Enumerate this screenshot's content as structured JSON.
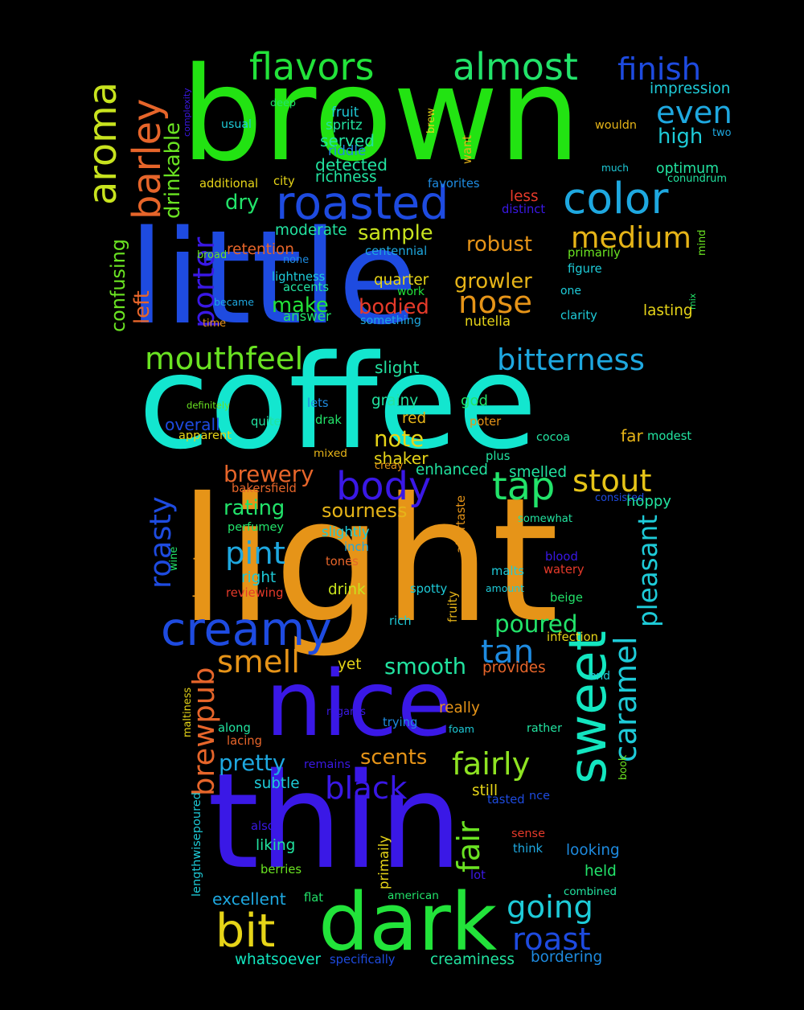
{
  "words": [
    {
      "text": "brown",
      "color": "#22e312"
    },
    {
      "text": "little",
      "color": "#1e4be0"
    },
    {
      "text": "coffee",
      "color": "#13e6cf"
    },
    {
      "text": "light",
      "color": "#e69418"
    },
    {
      "text": "nice",
      "color": "#3a18e6"
    },
    {
      "text": "thin",
      "color": "#3a18e6"
    },
    {
      "text": "dark",
      "color": "#22e33a"
    },
    {
      "text": "sweet",
      "color": "#13e6c0"
    },
    {
      "text": "creamy",
      "color": "#1e4be0"
    },
    {
      "text": "roasted",
      "color": "#1e4be0"
    },
    {
      "text": "color",
      "color": "#1ea8e0"
    },
    {
      "text": "flavors",
      "color": "#22e33a"
    },
    {
      "text": "almost",
      "color": "#22e36a"
    },
    {
      "text": "finish",
      "color": "#1e4be0"
    },
    {
      "text": "aroma",
      "color": "#c8e31e"
    },
    {
      "text": "barley",
      "color": "#e6652a"
    },
    {
      "text": "even",
      "color": "#1ea8e0"
    },
    {
      "text": "high",
      "color": "#1ecbd8"
    },
    {
      "text": "medium",
      "color": "#e6b418"
    },
    {
      "text": "nose",
      "color": "#e69418"
    },
    {
      "text": "mouthfeel",
      "color": "#6ae322"
    },
    {
      "text": "bitterness",
      "color": "#1ea8e0"
    },
    {
      "text": "body",
      "color": "#3a18e6"
    },
    {
      "text": "tap",
      "color": "#22e36a"
    },
    {
      "text": "stout",
      "color": "#e6c418"
    },
    {
      "text": "pint",
      "color": "#1ea8e0"
    },
    {
      "text": "smell",
      "color": "#e69418"
    },
    {
      "text": "tan",
      "color": "#1e8be0"
    },
    {
      "text": "caramel",
      "color": "#1ecbd8"
    },
    {
      "text": "fairly",
      "color": "#8ee322"
    },
    {
      "text": "fair",
      "color": "#6ae322"
    },
    {
      "text": "black",
      "color": "#3a18e6"
    },
    {
      "text": "bit",
      "color": "#e6d418"
    },
    {
      "text": "going",
      "color": "#1ecbd8"
    },
    {
      "text": "roast",
      "color": "#1e4be0"
    },
    {
      "text": "porter",
      "color": "#3a18e6"
    },
    {
      "text": "roasty",
      "color": "#1e4be0"
    },
    {
      "text": "brewpub",
      "color": "#e6652a"
    },
    {
      "text": "pleasant",
      "color": "#1ecbd8"
    },
    {
      "text": "drinkable",
      "color": "#6ae322"
    },
    {
      "text": "confusing",
      "color": "#6ae322"
    },
    {
      "text": "left",
      "color": "#e6652a"
    },
    {
      "text": "dry",
      "color": "#22e36a"
    },
    {
      "text": "sample",
      "color": "#c8e31e"
    },
    {
      "text": "robust",
      "color": "#e69418"
    },
    {
      "text": "growler",
      "color": "#e6b418"
    },
    {
      "text": "make",
      "color": "#22e33a"
    },
    {
      "text": "bodied",
      "color": "#e63a2a"
    },
    {
      "text": "brewery",
      "color": "#e6652a"
    },
    {
      "text": "rating",
      "color": "#22e36a"
    },
    {
      "text": "sourness",
      "color": "#e6b418"
    },
    {
      "text": "note",
      "color": "#e6d418"
    },
    {
      "text": "poured",
      "color": "#22e36a"
    },
    {
      "text": "smooth",
      "color": "#22e3a0"
    },
    {
      "text": "pretty",
      "color": "#1ea8e0"
    },
    {
      "text": "scents",
      "color": "#e69418"
    },
    {
      "text": "excellent",
      "color": "#1ea8e0"
    },
    {
      "text": "whatsoever",
      "color": "#13e6c0"
    },
    {
      "text": "creaminess",
      "color": "#22e3a0"
    },
    {
      "text": "bordering",
      "color": "#1e8be0"
    },
    {
      "text": "impression",
      "color": "#1ecbd8"
    },
    {
      "text": "moderate",
      "color": "#22e3a0"
    },
    {
      "text": "retention",
      "color": "#e6652a"
    },
    {
      "text": "served",
      "color": "#22e3a0"
    },
    {
      "text": "detected",
      "color": "#22e3a0"
    },
    {
      "text": "richness",
      "color": "#22e3a0"
    },
    {
      "text": "spritz",
      "color": "#22e3a0"
    },
    {
      "text": "fruit",
      "color": "#1ecbd8"
    },
    {
      "text": "riddle",
      "color": "#1e8be0"
    },
    {
      "text": "deep",
      "color": "#22e36a"
    },
    {
      "text": "usual",
      "color": "#1ecbd8"
    },
    {
      "text": "additional",
      "color": "#e6d418"
    },
    {
      "text": "city",
      "color": "#e6d418"
    },
    {
      "text": "favorites",
      "color": "#1e8be0"
    },
    {
      "text": "less",
      "color": "#e63a2a"
    },
    {
      "text": "distinct",
      "color": "#3a18e6"
    },
    {
      "text": "wouldn",
      "color": "#e6b418"
    },
    {
      "text": "two",
      "color": "#1ea8e0"
    },
    {
      "text": "much",
      "color": "#1ecbd8"
    },
    {
      "text": "optimum",
      "color": "#22e3a0"
    },
    {
      "text": "conundrum",
      "color": "#22e3a0"
    },
    {
      "text": "brew",
      "color": "#e6d418"
    },
    {
      "text": "want",
      "color": "#e6b418"
    },
    {
      "text": "complexity",
      "color": "#3a18e6"
    },
    {
      "text": "broad",
      "color": "#6ae322"
    },
    {
      "text": "none",
      "color": "#1e8be0"
    },
    {
      "text": "centennial",
      "color": "#1ea8e0"
    },
    {
      "text": "primarily",
      "color": "#6ae322"
    },
    {
      "text": "mind",
      "color": "#6ae322"
    },
    {
      "text": "figure",
      "color": "#1ecbd8"
    },
    {
      "text": "lightness",
      "color": "#1ecbd8"
    },
    {
      "text": "accents",
      "color": "#22e3a0"
    },
    {
      "text": "quarter",
      "color": "#e6d418"
    },
    {
      "text": "work",
      "color": "#22e33a"
    },
    {
      "text": "one",
      "color": "#1ecbd8"
    },
    {
      "text": "mix",
      "color": "#22e36a"
    },
    {
      "text": "became",
      "color": "#1ea8e0"
    },
    {
      "text": "time",
      "color": "#e69418"
    },
    {
      "text": "answer",
      "color": "#22e36a"
    },
    {
      "text": "something",
      "color": "#1ea8e0"
    },
    {
      "text": "nutella",
      "color": "#e6d418"
    },
    {
      "text": "clarity",
      "color": "#1ecbd8"
    },
    {
      "text": "lasting",
      "color": "#e6d418"
    },
    {
      "text": "slight",
      "color": "#22e3a0"
    },
    {
      "text": "definitely",
      "color": "#6ae322"
    },
    {
      "text": "lets",
      "color": "#1e8be0"
    },
    {
      "text": "grainy",
      "color": "#22e3a0"
    },
    {
      "text": "god",
      "color": "#22e36a"
    },
    {
      "text": "overall",
      "color": "#1e4be0"
    },
    {
      "text": "quite",
      "color": "#22e3a0"
    },
    {
      "text": "drak",
      "color": "#22e36a"
    },
    {
      "text": "red",
      "color": "#e6b418"
    },
    {
      "text": "poter",
      "color": "#e69418"
    },
    {
      "text": "apparent",
      "color": "#e6d418"
    },
    {
      "text": "cocoa",
      "color": "#22e3a0"
    },
    {
      "text": "far",
      "color": "#e6b418"
    },
    {
      "text": "modest",
      "color": "#22e3a0"
    },
    {
      "text": "mixed",
      "color": "#e6b418"
    },
    {
      "text": "shaker",
      "color": "#e6d418"
    },
    {
      "text": "plus",
      "color": "#22e3a0"
    },
    {
      "text": "creay",
      "color": "#e69418"
    },
    {
      "text": "enhanced",
      "color": "#22e3a0"
    },
    {
      "text": "smelled",
      "color": "#22e3a0"
    },
    {
      "text": "bakersfield",
      "color": "#e6652a"
    },
    {
      "text": "consisted",
      "color": "#1e4be0"
    },
    {
      "text": "hoppy",
      "color": "#22e3a0"
    },
    {
      "text": "aftertaste",
      "color": "#e69418"
    },
    {
      "text": "perfumey",
      "color": "#22e36a"
    },
    {
      "text": "slightly",
      "color": "#1ecbd8"
    },
    {
      "text": "somewhat",
      "color": "#22e3a0"
    },
    {
      "text": "inch",
      "color": "#1ea8e0"
    },
    {
      "text": "wine",
      "color": "#22e36a"
    },
    {
      "text": "tones",
      "color": "#e6652a"
    },
    {
      "text": "blood",
      "color": "#3a18e6"
    },
    {
      "text": "watery",
      "color": "#e63a2a"
    },
    {
      "text": "right",
      "color": "#1ecbd8"
    },
    {
      "text": "malts",
      "color": "#1ecbd8"
    },
    {
      "text": "burnt",
      "color": "#e69418"
    },
    {
      "text": "reviewing",
      "color": "#e63a2a"
    },
    {
      "text": "drink",
      "color": "#c8e31e"
    },
    {
      "text": "spotty",
      "color": "#1ecbd8"
    },
    {
      "text": "amount",
      "color": "#1ecbd8"
    },
    {
      "text": "fruity",
      "color": "#e6b418"
    },
    {
      "text": "beige",
      "color": "#22e36a"
    },
    {
      "text": "rich",
      "color": "#1ecbd8"
    },
    {
      "text": "infection",
      "color": "#e6d418"
    },
    {
      "text": "yet",
      "color": "#e6d418"
    },
    {
      "text": "provides",
      "color": "#e6652a"
    },
    {
      "text": "end",
      "color": "#1ecbd8"
    },
    {
      "text": "maltiness",
      "color": "#e6d418"
    },
    {
      "text": "really",
      "color": "#e69418"
    },
    {
      "text": "regards",
      "color": "#3a18e6"
    },
    {
      "text": "trying",
      "color": "#1e8be0"
    },
    {
      "text": "along",
      "color": "#22e3a0"
    },
    {
      "text": "foam",
      "color": "#1ecbd8"
    },
    {
      "text": "rather",
      "color": "#22e3a0"
    },
    {
      "text": "lacing",
      "color": "#e6652a"
    },
    {
      "text": "book",
      "color": "#6ae322"
    },
    {
      "text": "remains",
      "color": "#3a18e6"
    },
    {
      "text": "subtle",
      "color": "#1ecbd8"
    },
    {
      "text": "still",
      "color": "#e6d418"
    },
    {
      "text": "tasted",
      "color": "#1e4be0"
    },
    {
      "text": "nce",
      "color": "#1e4be0"
    },
    {
      "text": "lengthwisepoured",
      "color": "#1ecbd8"
    },
    {
      "text": "also",
      "color": "#3a18e6"
    },
    {
      "text": "primaily",
      "color": "#e6d418"
    },
    {
      "text": "sense",
      "color": "#e63a2a"
    },
    {
      "text": "liking",
      "color": "#22e3a0"
    },
    {
      "text": "think",
      "color": "#1ea8e0"
    },
    {
      "text": "looking",
      "color": "#1e8be0"
    },
    {
      "text": "berries",
      "color": "#6ae322"
    },
    {
      "text": "held",
      "color": "#22e36a"
    },
    {
      "text": "lot",
      "color": "#3a18e6"
    },
    {
      "text": "flat",
      "color": "#22e36a"
    },
    {
      "text": "american",
      "color": "#22e36a"
    },
    {
      "text": "combined",
      "color": "#22e3a0"
    },
    {
      "text": "specifically",
      "color": "#1e4be0"
    }
  ]
}
